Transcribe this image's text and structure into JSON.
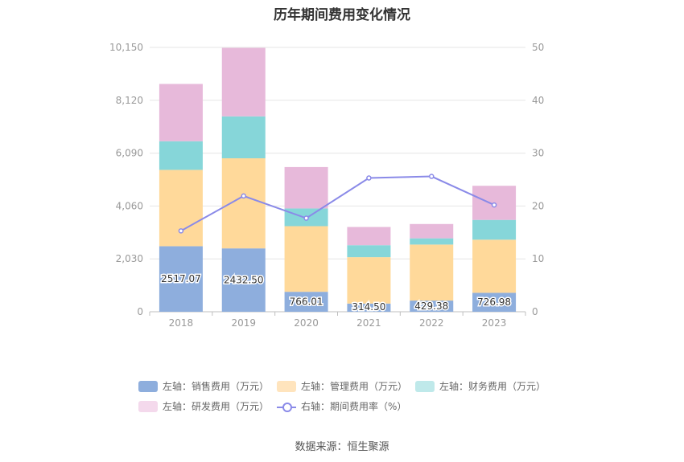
{
  "title": "历年期间费用变化情况",
  "source": "数据来源：恒生聚源",
  "chart_data": {
    "type": "bar",
    "stacked": true,
    "categories": [
      "2018",
      "2019",
      "2020",
      "2021",
      "2022",
      "2023"
    ],
    "left_axis": {
      "min": 0,
      "max": 10150,
      "ticks": [
        0,
        2030,
        4060,
        6090,
        8120,
        10150
      ],
      "tick_labels": [
        "0",
        "2,030",
        "4,060",
        "6,090",
        "8,120",
        "10,150"
      ]
    },
    "right_axis": {
      "min": 0,
      "max": 50,
      "ticks": [
        0,
        10,
        20,
        30,
        40,
        50
      ],
      "tick_labels": [
        "0",
        "10",
        "20",
        "30",
        "40",
        "50"
      ]
    },
    "series": [
      {
        "name": "左轴：销售费用（万元）",
        "type": "bar",
        "color": "#8eaedd",
        "values": [
          2517.07,
          2432.5,
          766.01,
          314.5,
          429.38,
          726.98
        ],
        "labels": [
          "2517.07",
          "2432.50",
          "766.01",
          "314.50",
          "429.38",
          "726.98"
        ]
      },
      {
        "name": "左轴：管理费用（万元）",
        "type": "bar",
        "color": "#ffd99a",
        "values": [
          2930,
          3460,
          2520,
          1780,
          2150,
          2040
        ]
      },
      {
        "name": "左轴：财务费用（万元）",
        "type": "bar",
        "color": "#86d6d9",
        "values": [
          1100,
          1610,
          680,
          460,
          240,
          760
        ]
      },
      {
        "name": "左轴：研发费用（万元）",
        "type": "bar",
        "color": "#e7b9da",
        "values": [
          2200,
          2630,
          1590,
          700,
          550,
          1310
        ]
      },
      {
        "name": "右轴：期间费用率（%）",
        "type": "line",
        "axis": "right",
        "color": "#8a8ae8",
        "values": [
          15.3,
          21.9,
          17.7,
          25.3,
          25.6,
          20.2
        ]
      }
    ],
    "legend_position": "bottom",
    "grid": true
  }
}
